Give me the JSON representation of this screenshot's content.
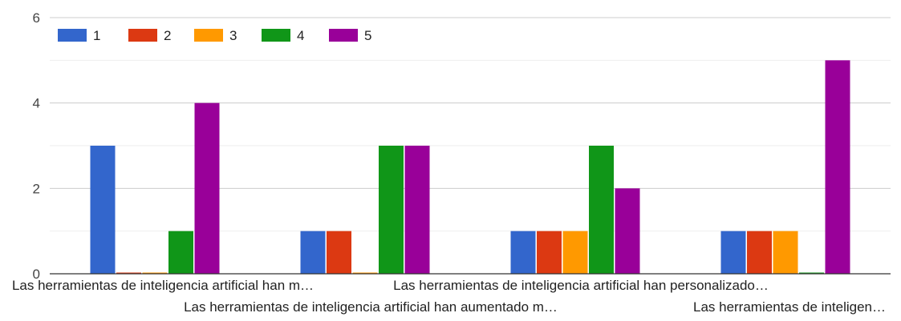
{
  "chart_data": {
    "type": "bar",
    "categories": [
      "Las herramientas de inteligencia artificial han m…",
      "Las herramientas de inteligencia artificial han aumentado m…",
      "Las herramientas de inteligencia artificial han personalizado…",
      "Las herramientas de inteligen…"
    ],
    "series": [
      {
        "name": "1",
        "color": "#3366cc",
        "values": [
          3,
          1,
          1,
          1
        ]
      },
      {
        "name": "2",
        "color": "#dc3912",
        "values": [
          0,
          1,
          1,
          1
        ]
      },
      {
        "name": "3",
        "color": "#ff9900",
        "values": [
          0,
          0,
          1,
          1
        ]
      },
      {
        "name": "4",
        "color": "#109618",
        "values": [
          1,
          3,
          3,
          0
        ]
      },
      {
        "name": "5",
        "color": "#990099",
        "values": [
          4,
          3,
          2,
          5
        ]
      }
    ],
    "y_ticks": [
      "0",
      "2",
      "4",
      "6"
    ],
    "ylim": [
      0,
      6
    ],
    "grid": true,
    "legend_position": "top-left"
  }
}
